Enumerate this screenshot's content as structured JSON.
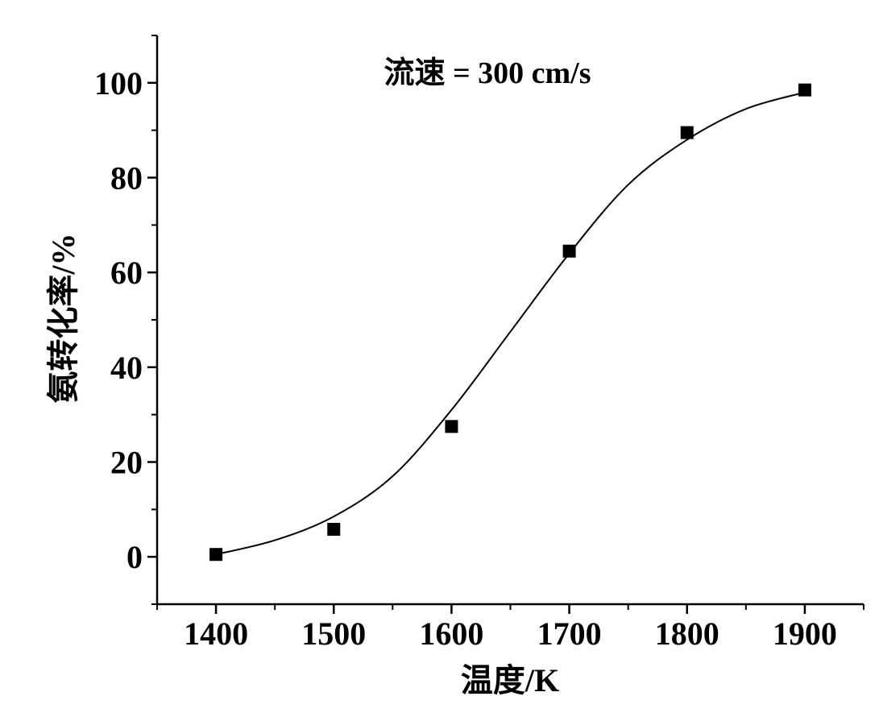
{
  "chart_data": {
    "type": "scatter",
    "xlabel": "温度/K",
    "ylabel": "氨转化率/%",
    "annotation": "流速 = 300 cm/s",
    "xlim": [
      1350,
      1950
    ],
    "ylim": [
      -10,
      110
    ],
    "x_ticks": [
      1400,
      1500,
      1600,
      1700,
      1800,
      1900
    ],
    "y_ticks": [
      0,
      20,
      40,
      60,
      80,
      100
    ],
    "x_tick_labels": [
      "1400",
      "1500",
      "1600",
      "1700",
      "1800",
      "1900"
    ],
    "y_tick_labels": [
      "0",
      "20",
      "40",
      "60",
      "80",
      "100"
    ],
    "series": [
      {
        "marker": "square",
        "color": "#000000",
        "x": [
          1400,
          1500,
          1600,
          1700,
          1800,
          1900
        ],
        "y": [
          0.5,
          5.8,
          27.5,
          64.5,
          89.5,
          98.5
        ]
      }
    ],
    "fit_curve": {
      "type": "sigmoid",
      "color": "#000000",
      "x": [
        1400,
        1450,
        1500,
        1550,
        1600,
        1650,
        1700,
        1750,
        1800,
        1850,
        1900
      ],
      "y": [
        0.5,
        3.5,
        8.5,
        17,
        31,
        47.5,
        64,
        78.5,
        88,
        94.5,
        98
      ]
    },
    "grid": false,
    "legend": "none"
  }
}
